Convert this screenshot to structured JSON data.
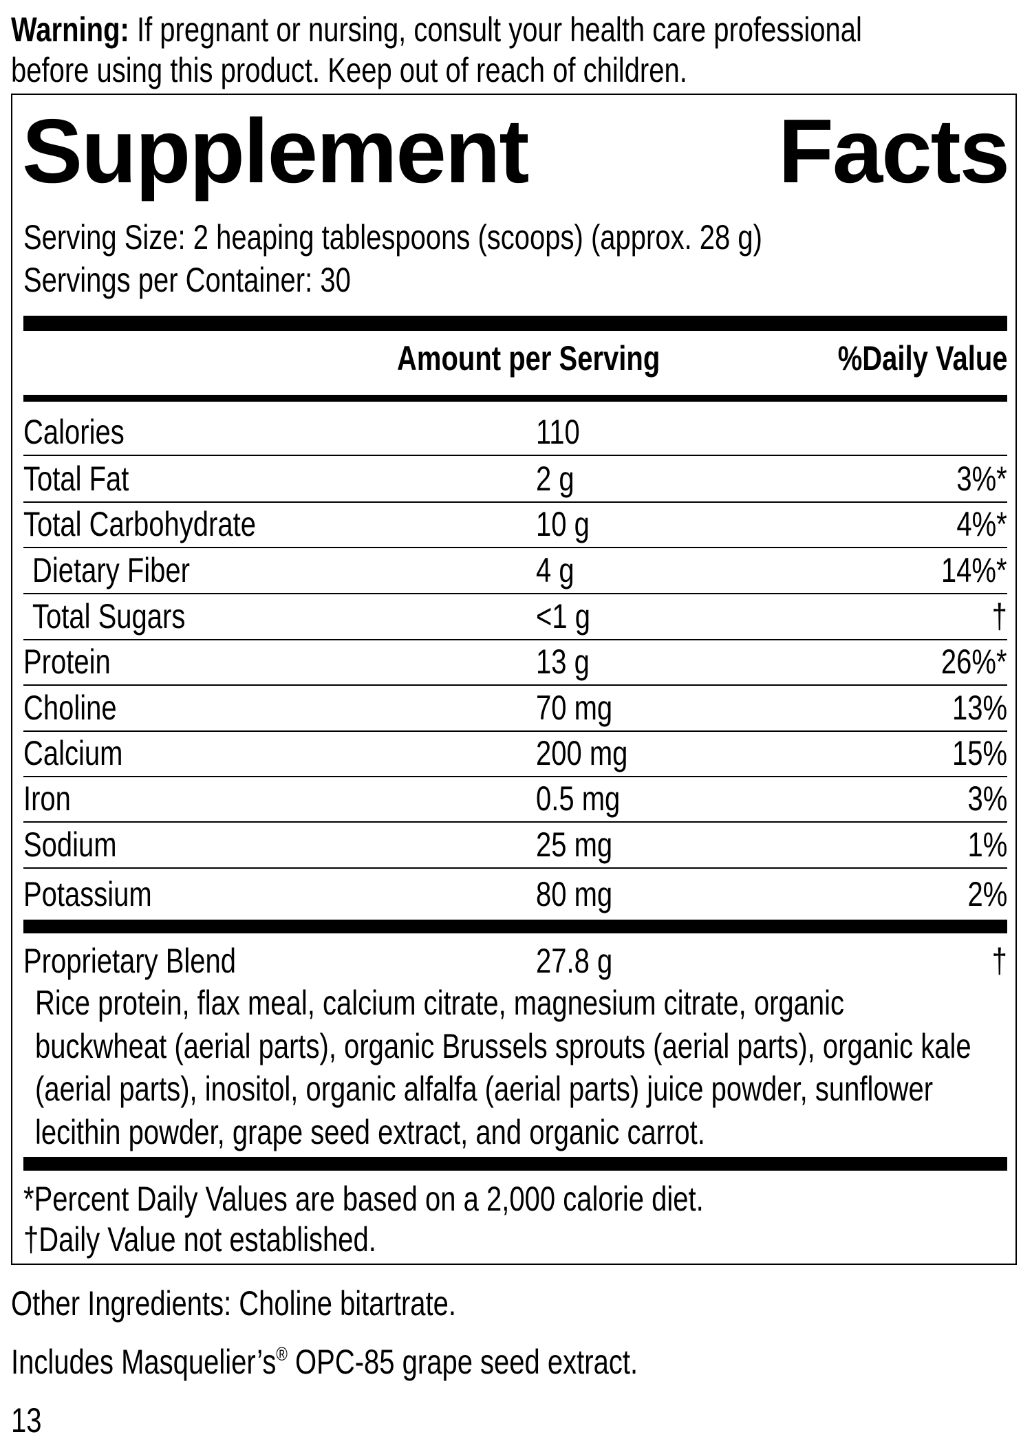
{
  "warning": {
    "label": "Warning:",
    "line1": "If pregnant or nursing, consult your health care professional",
    "line2": "before using this product. Keep out of reach of children."
  },
  "title": {
    "word1": "Supplement",
    "word2": "Facts"
  },
  "serving_size": "Serving Size: 2 heaping tablespoons (scoops) (approx. 28 g)",
  "servings_per_container": "Servings per Container: 30",
  "headers": {
    "amount": "Amount per Serving",
    "dv": "%Daily Value"
  },
  "rows": [
    {
      "name": "Calories",
      "amount": "110",
      "dv": ""
    },
    {
      "name": "Total Fat",
      "amount": "2 g",
      "dv": "3%*"
    },
    {
      "name": "Total Carbohydrate",
      "amount": "10 g",
      "dv": "4%*"
    },
    {
      "name": "Dietary Fiber",
      "amount": "4 g",
      "dv": "14%*"
    },
    {
      "name": "Total Sugars",
      "amount": "<1 g",
      "dv": "†"
    },
    {
      "name": "Protein",
      "amount": "13 g",
      "dv": "26%*"
    },
    {
      "name": "Choline",
      "amount": "70 mg",
      "dv": "13%"
    },
    {
      "name": "Calcium",
      "amount": "200 mg",
      "dv": "15%"
    },
    {
      "name": "Iron",
      "amount": "0.5 mg",
      "dv": "3%"
    },
    {
      "name": "Sodium",
      "amount": "25 mg",
      "dv": "1%"
    },
    {
      "name": "Potassium",
      "amount": "80 mg",
      "dv": "2%"
    }
  ],
  "blend": {
    "name": "Proprietary Blend",
    "amount": "27.8 g",
    "dv": "†",
    "ingredient_lines": [
      "Rice protein, flax meal, calcium citrate, magnesium citrate, organic",
      "buckwheat (aerial parts), organic Brussels sprouts (aerial parts), organic kale",
      "(aerial parts), inositol, organic alfalfa (aerial parts) juice powder, sunflower",
      "lecithin powder, grape seed extract, and organic carrot."
    ]
  },
  "footnotes": [
    "*Percent Daily Values are based on a 2,000 calorie diet.",
    "†Daily Value not established."
  ],
  "other_ingredients": "Other Ingredients: Choline bitartrate.",
  "includes": {
    "pre": "Includes Masquelier’s",
    "reg": "®",
    "post": " OPC-85 grape seed extract."
  },
  "page_number": "13"
}
